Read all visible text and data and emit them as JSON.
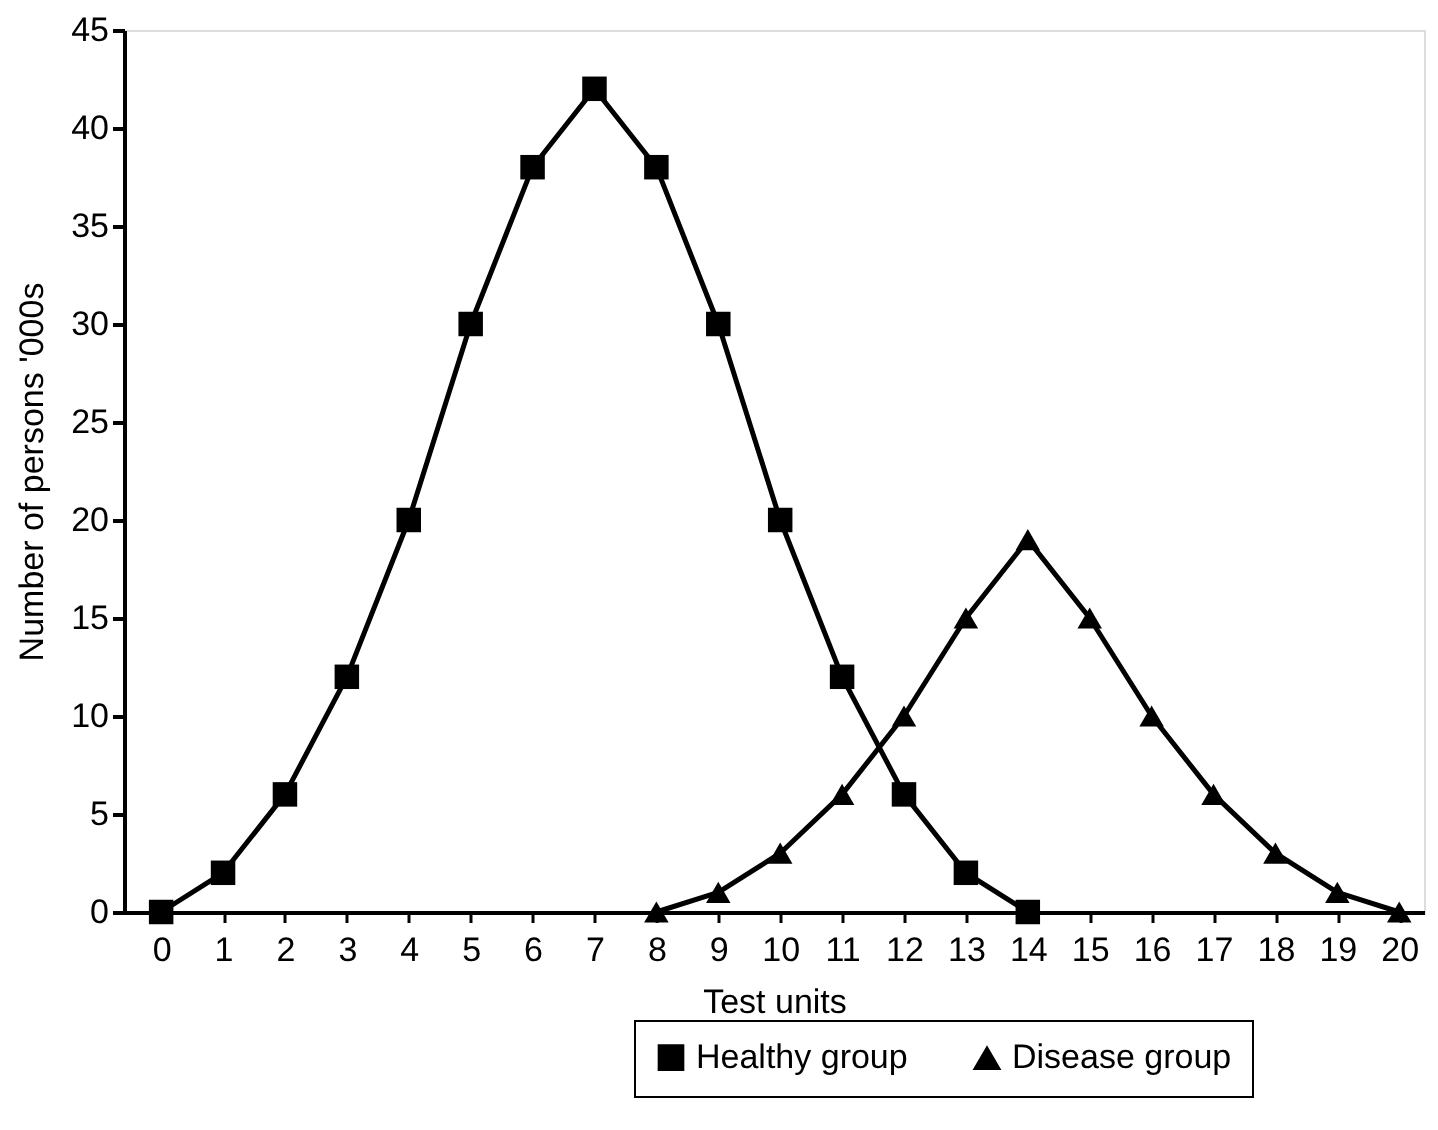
{
  "chart_data": {
    "type": "line",
    "xlabel": "Test units",
    "ylabel": "Number of persons '000s",
    "xlim": [
      -0.6,
      20.4
    ],
    "xticks": [
      0,
      1,
      2,
      3,
      4,
      5,
      6,
      7,
      8,
      9,
      10,
      11,
      12,
      13,
      14,
      15,
      16,
      17,
      18,
      19,
      20
    ],
    "ylim": [
      0,
      45
    ],
    "yticks": [
      0,
      5,
      10,
      15,
      20,
      25,
      30,
      35,
      40,
      45
    ],
    "grid": false,
    "legend": "bottom right",
    "line_style": "solid",
    "series": [
      {
        "name": "Healthy group",
        "color": "#000000",
        "marker": "square",
        "x": [
          0,
          1,
          2,
          3,
          4,
          5,
          6,
          7,
          8,
          9,
          10,
          11,
          12,
          13,
          14
        ],
        "values": [
          0,
          2,
          6,
          12,
          20,
          30,
          38,
          42,
          38,
          30,
          20,
          12,
          6,
          2,
          0
        ]
      },
      {
        "name": "Disease group",
        "color": "#000000",
        "marker": "triangle",
        "x": [
          8,
          9,
          10,
          11,
          12,
          13,
          14,
          15,
          16,
          17,
          18,
          19,
          20
        ],
        "values": [
          0,
          1,
          3,
          6,
          10,
          15,
          19,
          15,
          10,
          6,
          3,
          1,
          0
        ]
      }
    ]
  }
}
